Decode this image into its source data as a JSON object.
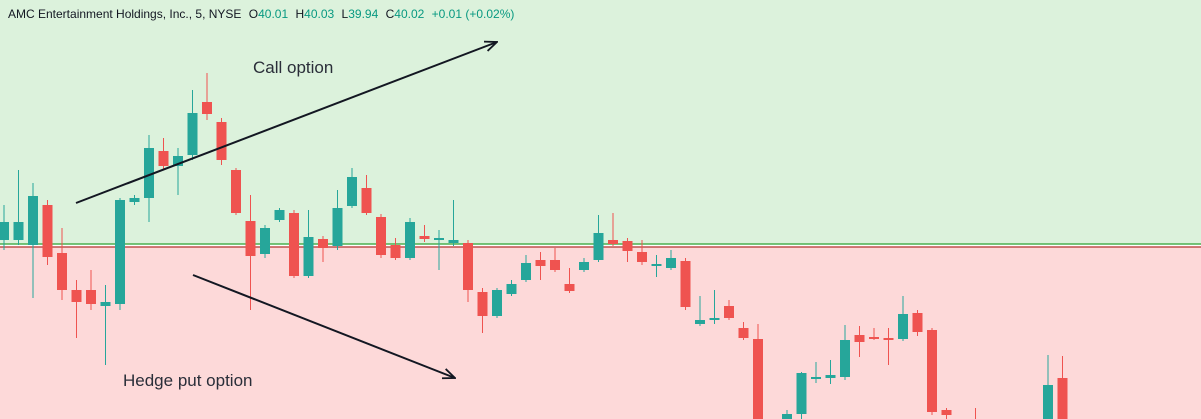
{
  "chart_data": {
    "type": "candlestick",
    "header": {
      "symbol": "AMC Entertainment Holdings, Inc., 5, NYSE",
      "open": {
        "label": "O",
        "value": 40.01
      },
      "high": {
        "label": "H",
        "value": 40.03
      },
      "low": {
        "label": "L",
        "value": 39.94
      },
      "close": {
        "label": "C",
        "value": 40.02
      },
      "change": "+0.01 (+0.02%)"
    },
    "annotations": [
      "Call option",
      "Hedge put option"
    ],
    "ylim": [
      39.005,
      41.1
    ],
    "profit_zone_bottom": 39.88,
    "loss_zone_top": 39.865,
    "up_color": "#26a69a",
    "down_color": "#ef5350",
    "open": [
      39.9,
      39.9,
      39.875,
      40.075,
      39.835,
      39.65,
      39.65,
      39.57,
      39.58,
      40.09,
      40.11,
      40.345,
      40.27,
      40.325,
      40.59,
      40.49,
      40.25,
      39.995,
      39.83,
      40.0,
      40.035,
      39.72,
      39.905,
      39.87,
      40.07,
      40.16,
      40.015,
      39.875,
      39.81,
      39.92,
      39.9,
      39.885,
      39.885,
      39.64,
      39.52,
      39.63,
      39.7,
      39.8,
      39.8,
      39.68,
      39.75,
      39.8,
      39.9,
      39.895,
      39.84,
      39.77,
      39.76,
      39.795,
      39.48,
      39.5,
      39.57,
      39.46,
      39.405,
      null,
      39.0,
      39.03,
      39.205,
      39.21,
      39.215,
      39.425,
      39.415,
      39.41,
      39.405,
      39.535,
      39.45,
      39.05,
      null,
      39.0,
      null,
      null,
      null,
      null,
      38.975,
      39.21
    ],
    "high": [
      40.075,
      40.25,
      40.185,
      40.1,
      39.96,
      39.7,
      39.75,
      39.675,
      40.11,
      40.125,
      40.425,
      40.41,
      40.36,
      40.65,
      40.735,
      40.51,
      40.26,
      40.125,
      39.975,
      40.06,
      40.05,
      40.05,
      39.92,
      40.15,
      40.26,
      40.225,
      40.03,
      39.91,
      40.01,
      39.975,
      39.95,
      40.1,
      39.9,
      39.66,
      39.66,
      39.7,
      39.825,
      39.84,
      39.86,
      39.76,
      39.81,
      40.025,
      40.035,
      39.91,
      39.9,
      39.825,
      39.85,
      39.81,
      39.62,
      39.65,
      39.6,
      39.49,
      39.48,
      null,
      39.05,
      39.24,
      39.29,
      39.3,
      39.475,
      39.47,
      39.46,
      39.46,
      39.62,
      39.55,
      39.46,
      39.06,
      null,
      39.06,
      null,
      null,
      null,
      null,
      39.325,
      39.32
    ],
    "low": [
      39.85,
      39.875,
      39.61,
      39.775,
      39.6,
      39.41,
      39.55,
      39.275,
      39.55,
      40.075,
      39.99,
      40.25,
      40.125,
      40.3,
      40.5,
      40.275,
      40.025,
      39.55,
      39.81,
      39.99,
      39.71,
      39.71,
      39.79,
      39.85,
      40.06,
      40.025,
      39.81,
      39.8,
      39.8,
      39.89,
      39.75,
      39.87,
      39.59,
      39.435,
      39.51,
      39.62,
      39.69,
      39.7,
      39.74,
      39.635,
      39.74,
      39.79,
      39.87,
      39.79,
      39.775,
      39.715,
      39.75,
      39.55,
      39.47,
      39.48,
      39.5,
      39.4,
      38.95,
      null,
      38.975,
      39.0,
      39.185,
      39.18,
      39.2,
      39.315,
      39.4,
      39.275,
      39.395,
      39.42,
      39.025,
      38.975,
      null,
      38.975,
      null,
      null,
      null,
      null,
      38.95,
      38.95
    ],
    "close": [
      39.99,
      39.99,
      40.12,
      39.815,
      39.65,
      39.59,
      39.58,
      39.59,
      40.1,
      40.11,
      40.36,
      40.27,
      40.32,
      40.535,
      40.53,
      40.3,
      40.035,
      39.82,
      39.96,
      40.05,
      39.72,
      39.915,
      39.86,
      40.06,
      40.215,
      40.035,
      39.825,
      39.81,
      39.99,
      39.905,
      39.91,
      39.9,
      39.65,
      39.52,
      39.65,
      39.68,
      39.785,
      39.77,
      39.75,
      39.645,
      39.79,
      39.935,
      39.88,
      39.845,
      39.79,
      39.78,
      39.81,
      39.565,
      39.5,
      39.51,
      39.51,
      39.41,
      38.975,
      null,
      39.03,
      39.235,
      39.215,
      39.225,
      39.4,
      39.39,
      39.405,
      39.4,
      39.53,
      39.44,
      39.04,
      39.025,
      null,
      38.99,
      null,
      null,
      null,
      null,
      39.175,
      38.975
    ]
  }
}
